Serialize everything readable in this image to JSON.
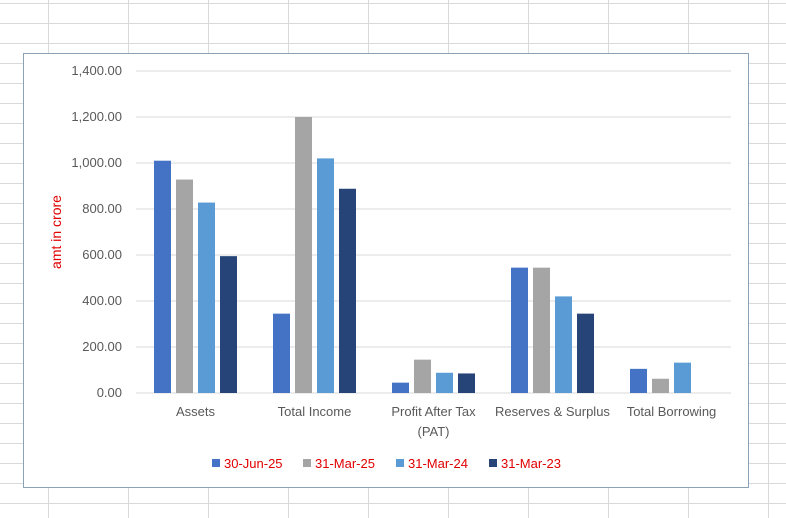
{
  "chart_data": {
    "type": "bar",
    "categories": [
      "Assets",
      "Total Income",
      "Profit After Tax (PAT)",
      "Reserves & Surplus",
      "Total Borrowing"
    ],
    "category_lines": [
      [
        "Assets"
      ],
      [
        "Total Income"
      ],
      [
        "Profit After Tax",
        "(PAT)"
      ],
      [
        "Reserves & Surplus"
      ],
      [
        "Total Borrowing"
      ]
    ],
    "series": [
      {
        "name": "30-Jun-25",
        "values": [
          1010,
          345,
          45,
          545,
          105
        ],
        "color": "#4472c4"
      },
      {
        "name": "31-Mar-25",
        "values": [
          928,
          1200,
          145,
          545,
          62
        ],
        "color": "#a5a5a5"
      },
      {
        "name": "31-Mar-24",
        "values": [
          828,
          1020,
          88,
          420,
          132
        ],
        "color": "#5b9bd5"
      },
      {
        "name": "31-Mar-23",
        "values": [
          595,
          888,
          85,
          345,
          null
        ],
        "color": "#264478"
      }
    ],
    "ylabel": "amt in crore",
    "ylabel_color": "#e00000",
    "legend_text_color": "#e00000",
    "ylim": [
      0,
      1400
    ],
    "yticks": [
      0,
      200,
      400,
      600,
      800,
      1000,
      1200,
      1400
    ],
    "ytick_labels": [
      "0.00",
      "200.00",
      "400.00",
      "600.00",
      "800.00",
      "1,000.00",
      "1,200.00",
      "1,400.00"
    ],
    "grid": true,
    "legend_position": "bottom"
  }
}
